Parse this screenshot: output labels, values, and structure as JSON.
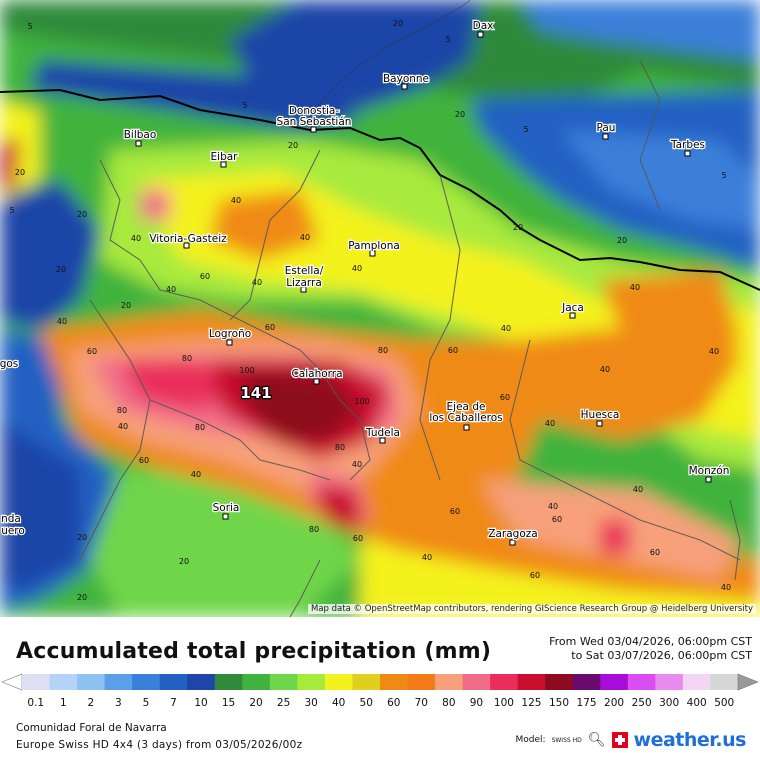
{
  "map": {
    "attribution": "Map data © OpenStreetMap contributors, rendering GIScience Research Group @ Heidelberg University",
    "max_value": "141",
    "cities": [
      {
        "name": "Dax"
      },
      {
        "name": "Bayonne"
      },
      {
        "name": "Donostia-"
      },
      {
        "name": "San Sebastián"
      },
      {
        "name": "Bilbao"
      },
      {
        "name": "Eibar"
      },
      {
        "name": "Pau"
      },
      {
        "name": "Tarbes"
      },
      {
        "name": "Vitoria-Gasteiz"
      },
      {
        "name": "Pamplona"
      },
      {
        "name": "Estella/"
      },
      {
        "name": "Lizarra"
      },
      {
        "name": "Jaca"
      },
      {
        "name": "Logroño"
      },
      {
        "name": "Calahorra"
      },
      {
        "name": "Ejea de"
      },
      {
        "name": "los Caballeros"
      },
      {
        "name": "Huesca"
      },
      {
        "name": "Tudela"
      },
      {
        "name": "Monzón"
      },
      {
        "name": "Soria"
      },
      {
        "name": "Zaragoza"
      },
      {
        "name": "gos"
      },
      {
        "name": "nda"
      },
      {
        "name": "uero"
      }
    ],
    "contour_labels": [
      "5",
      "20",
      "5",
      "5",
      "20",
      "20",
      "5",
      "5",
      "20",
      "5",
      "20",
      "40",
      "40",
      "60",
      "40",
      "20",
      "40",
      "20",
      "40",
      "40",
      "20",
      "40",
      "40",
      "60",
      "20",
      "40",
      "40",
      "60",
      "80",
      "100",
      "80",
      "60",
      "100",
      "80",
      "60",
      "80",
      "60",
      "40",
      "40",
      "20",
      "80",
      "40",
      "60",
      "40",
      "40",
      "60",
      "80",
      "60",
      "40",
      "40",
      "40",
      "20",
      "20",
      "60",
      "60",
      "40"
    ]
  },
  "panel": {
    "title": "Accumulated total precipitation (mm)",
    "period_from": "From Wed 03/04/2026, 06:00pm CST",
    "period_to": "to Sat 03/07/2026, 06:00pm CST",
    "region": "Comunidad Foral de Navarra",
    "model_run": "Europe Swiss HD 4x4 (3 days) from  03/05/2026/00z",
    "model_label": "Model:",
    "model_small": "SWISS HD",
    "brand": "weather.us"
  },
  "legend": {
    "ticks": [
      "0.1",
      "1",
      "2",
      "3",
      "5",
      "7",
      "10",
      "15",
      "20",
      "25",
      "30",
      "40",
      "50",
      "60",
      "70",
      "80",
      "90",
      "100",
      "125",
      "150",
      "175",
      "200",
      "250",
      "300",
      "400",
      "500"
    ],
    "colors": [
      "#dedff5",
      "#b4d4f7",
      "#8fc1f3",
      "#5a9fe8",
      "#3a7fd9",
      "#2261c2",
      "#1f45a8",
      "#2f8a3a",
      "#3fb33d",
      "#6fd64a",
      "#a8ea3c",
      "#f4f21c",
      "#e0cf1c",
      "#f08a12",
      "#f57a18",
      "#f7a07a",
      "#f26c8a",
      "#ea2d5a",
      "#c8102e",
      "#8e0a1e",
      "#6a0a6f",
      "#a80cdb",
      "#d94ef0",
      "#e88cf0",
      "#f4d6f4",
      "#d6d6d6"
    ]
  }
}
